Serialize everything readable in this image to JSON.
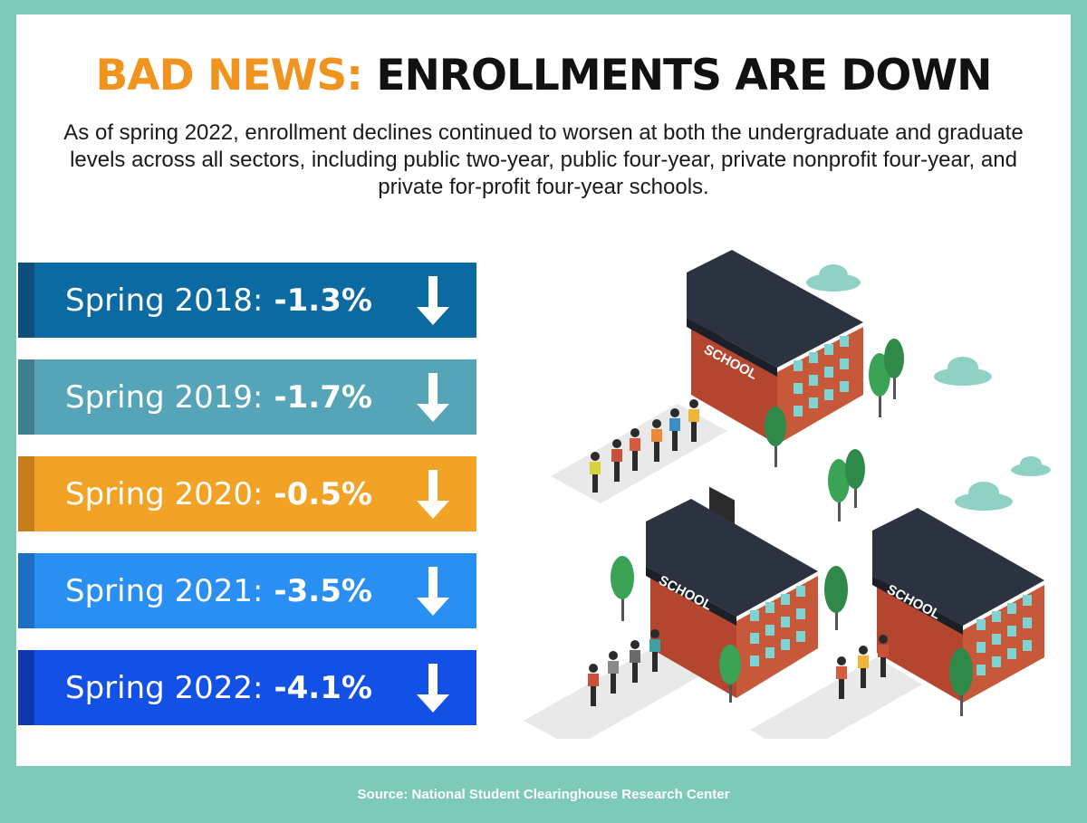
{
  "headline": {
    "accent": "BAD NEWS:",
    "main": "ENROLLMENTS ARE DOWN"
  },
  "intro": "As of spring 2022, enrollment declines continued to worsen at both the undergraduate and graduate levels across all sectors, including public two-year, public four-year, private nonprofit four-year, and private for-profit four-year schools.",
  "bars": [
    {
      "label": "Spring 2018:",
      "value": "-1.3%",
      "color": "#0a6aa1",
      "edge": "#0b4f7a"
    },
    {
      "label": "Spring 2019:",
      "value": "-1.7%",
      "color": "#56a4b8",
      "edge": "#3f7f8f"
    },
    {
      "label": "Spring 2020:",
      "value": "-0.5%",
      "color": "#f2a225",
      "edge": "#c47f1a"
    },
    {
      "label": "Spring 2021:",
      "value": "-3.5%",
      "color": "#2a8ff2",
      "edge": "#1d6fc4"
    },
    {
      "label": "Spring 2022:",
      "value": "-4.1%",
      "color": "#1350e6",
      "edge": "#0d39b0"
    }
  ],
  "schools": [
    "SCHOOL",
    "SCHOOL",
    "SCHOOL"
  ],
  "source": "Source: National Student Clearinghouse Research Center",
  "colors": {
    "background": "#7ecab9",
    "accent": "#f0941f",
    "brick": "#b4462f",
    "roof": "#2c3340",
    "tree": "#3aa356",
    "cloud": "#8fd1c4"
  }
}
